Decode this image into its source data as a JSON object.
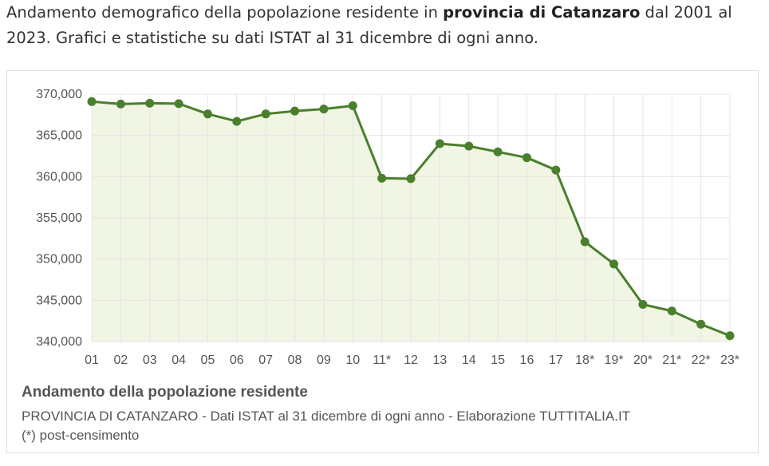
{
  "intro": {
    "part1": "Andamento demografico della popolazione residente in ",
    "bold": "provincia di Catanzaro",
    "part2": " dal 2001 al 2023. Grafici e statistiche su dati ISTAT al 31 dicembre di ogni anno."
  },
  "caption": {
    "title": "Andamento della popolazione residente",
    "subtitle": "PROVINCIA DI CATANZARO - Dati ISTAT al 31 dicembre di ogni anno - Elaborazione TUTTITALIA.IT",
    "note": "(*) post-censimento"
  },
  "colors": {
    "line": "#4a7f2c",
    "fill": "#f1f5e4",
    "grid": "#e4e4e4"
  },
  "chart_data": {
    "type": "area",
    "categories": [
      "01",
      "02",
      "03",
      "04",
      "05",
      "06",
      "07",
      "08",
      "09",
      "10",
      "11*",
      "12",
      "13",
      "14",
      "15",
      "16",
      "17",
      "18*",
      "19*",
      "20*",
      "21*",
      "22*",
      "23*"
    ],
    "values": [
      369100,
      368800,
      368900,
      368850,
      367600,
      366700,
      367600,
      367950,
      368200,
      368600,
      359800,
      359750,
      364000,
      363700,
      363000,
      362300,
      360800,
      352100,
      349400,
      344500,
      343700,
      342100,
      340700
    ],
    "ylim": [
      340000,
      370000
    ],
    "yticks": [
      340000,
      345000,
      350000,
      355000,
      360000,
      365000,
      370000
    ],
    "ytick_labels": [
      "340,000",
      "345,000",
      "350,000",
      "355,000",
      "360,000",
      "365,000",
      "370,000"
    ],
    "grid": true,
    "title": "Andamento della popolazione residente"
  }
}
